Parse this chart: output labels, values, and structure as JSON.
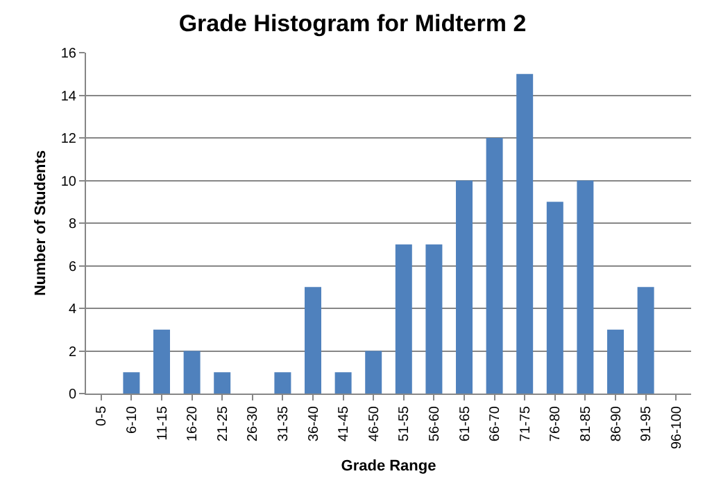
{
  "chart_data": {
    "type": "bar",
    "title": "Grade Histogram for Midterm 2",
    "xlabel": "Grade Range",
    "ylabel": "Number of Students",
    "categories": [
      "0-5",
      "6-10",
      "11-15",
      "16-20",
      "21-25",
      "26-30",
      "31-35",
      "36-40",
      "41-45",
      "46-50",
      "51-55",
      "56-60",
      "61-65",
      "66-70",
      "71-75",
      "76-80",
      "81-85",
      "86-90",
      "91-95",
      "96-100"
    ],
    "values": [
      0,
      1,
      3,
      2,
      1,
      0,
      1,
      5,
      1,
      2,
      7,
      7,
      10,
      12,
      15,
      9,
      10,
      3,
      5,
      0
    ],
    "color": "#4f81bd",
    "ylim": [
      0,
      16
    ],
    "yticks": [
      0,
      2,
      4,
      6,
      8,
      10,
      12,
      14,
      16
    ],
    "grid": "y"
  }
}
